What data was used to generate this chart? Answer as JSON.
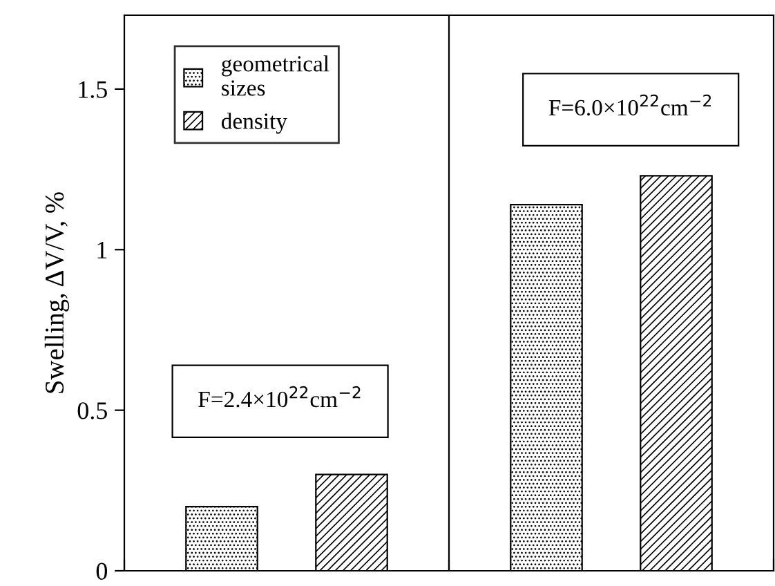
{
  "chart_data": {
    "type": "bar",
    "categories": [
      null,
      null
    ],
    "series": [
      {
        "name": "geometrical\nsizes",
        "color": "#000000",
        "values": [
          0.2,
          1.14
        ]
      },
      {
        "name": "density",
        "color": "#000000",
        "values": [
          0.3,
          1.23
        ]
      }
    ],
    "ylabel": "Swelling, ΔV/V, %",
    "ylim": [
      0,
      1.73
    ],
    "yticks": [
      0,
      0.5,
      1,
      1.5
    ],
    "annotations": [
      "F=2.4×10$^{22}$cm$^{−2}$",
      "F=6.0×10$^{22}$cm$^{−2}$"
    ],
    "grid": false,
    "legend": "top left"
  }
}
